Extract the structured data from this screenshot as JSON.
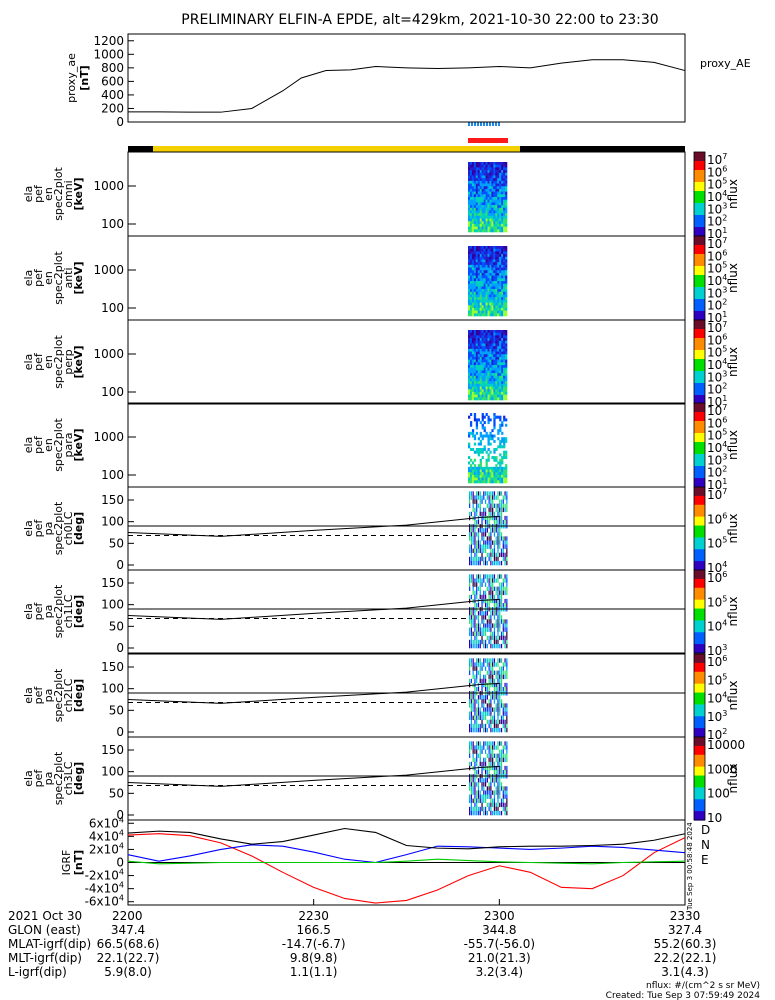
{
  "title": "PRELIMINARY ELFIN-A EPDE, alt=429km, 2021-10-30 22:00 to 23:30",
  "chart_data": [
    {
      "type": "line",
      "panel": "proxy_ae",
      "ylabel": "proxy_ae",
      "yunit": "[nT]",
      "legend": "proxy_AE",
      "yticks": [
        "0",
        "200",
        "400",
        "600",
        "800",
        "1000",
        "1200"
      ],
      "ylim": [
        0,
        1300
      ],
      "x_minutes": [
        0,
        5,
        10,
        15,
        20,
        25,
        28,
        32,
        36,
        40,
        45,
        50,
        55,
        60,
        65,
        70,
        75,
        80,
        85,
        90
      ],
      "values": [
        150,
        150,
        145,
        145,
        200,
        460,
        650,
        760,
        770,
        820,
        800,
        790,
        800,
        820,
        800,
        870,
        920,
        920,
        880,
        760
      ]
    },
    {
      "type": "heatmap",
      "panel": "spec_omni",
      "ylabel_lines": [
        "ela",
        "pef",
        "en",
        "spec2plot",
        "omni",
        "[keV]"
      ],
      "yticks": [
        "100",
        "1000"
      ],
      "colorbar_label": "nflux",
      "colorbar_ticks": [
        "10^7",
        "10^6",
        "10^5",
        "10^4",
        "10^3",
        "10^2",
        "10^1"
      ]
    },
    {
      "type": "heatmap",
      "panel": "spec_anti",
      "ylabel_lines": [
        "ela",
        "pef",
        "en",
        "spec2plot",
        "anti",
        "[keV]"
      ],
      "yticks": [
        "100",
        "1000"
      ],
      "colorbar_label": "nflux",
      "colorbar_ticks": [
        "10^7",
        "10^6",
        "10^5",
        "10^4",
        "10^3",
        "10^2",
        "10^1"
      ]
    },
    {
      "type": "heatmap",
      "panel": "spec_perp",
      "ylabel_lines": [
        "ela",
        "pef",
        "en",
        "spec2plot",
        "perp",
        "[keV]"
      ],
      "yticks": [
        "100",
        "1000"
      ],
      "colorbar_label": "nflux",
      "colorbar_ticks": [
        "10^7",
        "10^6",
        "10^5",
        "10^4",
        "10^3",
        "10^2",
        "10^1"
      ]
    },
    {
      "type": "heatmap",
      "panel": "spec_para",
      "ylabel_lines": [
        "ela",
        "pef",
        "en",
        "spec2plot",
        "para",
        "[keV]"
      ],
      "yticks": [
        "100",
        "1000"
      ],
      "colorbar_label": "nflux",
      "colorbar_ticks": [
        "10^7",
        "10^6",
        "10^5",
        "10^4",
        "10^3",
        "10^2",
        "10^1"
      ]
    },
    {
      "type": "heatmap",
      "panel": "pa_ch0",
      "ylabel_lines": [
        "ela",
        "pef",
        "pa",
        "spec2plot",
        "ch0LC",
        "[deg]"
      ],
      "yticks": [
        "0",
        "50",
        "100",
        "150"
      ],
      "ylim": [
        0,
        180
      ],
      "colorbar_label": "nflux",
      "colorbar_ticks": [
        "10^7",
        "10^6",
        "10^5",
        "10^4"
      ]
    },
    {
      "type": "heatmap",
      "panel": "pa_ch1",
      "ylabel_lines": [
        "ela",
        "pef",
        "pa",
        "spec2plot",
        "ch1LC",
        "[deg]"
      ],
      "yticks": [
        "0",
        "50",
        "100",
        "150"
      ],
      "ylim": [
        0,
        180
      ],
      "colorbar_label": "nflux",
      "colorbar_ticks": [
        "10^6",
        "10^5",
        "10^4",
        "10^3"
      ]
    },
    {
      "type": "heatmap",
      "panel": "pa_ch2",
      "ylabel_lines": [
        "ela",
        "pef",
        "pa",
        "spec2plot",
        "ch2LC",
        "[deg]"
      ],
      "yticks": [
        "0",
        "50",
        "100",
        "150"
      ],
      "ylim": [
        0,
        180
      ],
      "colorbar_label": "nflux",
      "colorbar_ticks": [
        "10^6",
        "10^5",
        "10^4",
        "10^3",
        "10^2"
      ]
    },
    {
      "type": "heatmap",
      "panel": "pa_ch3",
      "ylabel_lines": [
        "ela",
        "pef",
        "pa",
        "spec2plot",
        "ch3LC",
        "[deg]"
      ],
      "yticks": [
        "0",
        "50",
        "100",
        "150"
      ],
      "ylim": [
        0,
        180
      ],
      "colorbar_label": "nflux",
      "colorbar_ticks": [
        "10000",
        "1000",
        "100",
        "10"
      ]
    },
    {
      "type": "line",
      "panel": "igrf",
      "ylabel_lines": [
        "IGRF",
        "[nT]"
      ],
      "yticks": [
        "-6x10^4",
        "-4x10^4",
        "-2x10^4",
        "0",
        "2x10^4",
        "4x10^4",
        "6x10^4"
      ],
      "ylim": [
        -65000,
        65000
      ],
      "x_minutes": [
        0,
        5,
        10,
        15,
        20,
        25,
        30,
        35,
        40,
        45,
        50,
        55,
        60,
        65,
        70,
        75,
        80,
        85,
        90
      ],
      "series": [
        {
          "name": "D",
          "color": "#ff0000",
          "values": [
            42000,
            44000,
            41000,
            30000,
            10000,
            -15000,
            -38000,
            -55000,
            -62000,
            -58000,
            -42000,
            -20000,
            -5000,
            -15000,
            -38000,
            -40000,
            -20000,
            15000,
            38000
          ]
        },
        {
          "name": "N",
          "color": "#0000ff",
          "values": [
            12000,
            2000,
            10000,
            20000,
            27000,
            25000,
            16000,
            5000,
            0,
            12000,
            25000,
            24000,
            22000,
            20000,
            22000,
            25000,
            23000,
            19000,
            15000
          ]
        },
        {
          "name": "E",
          "color": "#00cc00",
          "values": [
            2000,
            -2000,
            -1000,
            0,
            0,
            0,
            0,
            0,
            0,
            2000,
            5000,
            3000,
            1000,
            0,
            -1000,
            -2000,
            0,
            1000,
            2000
          ]
        },
        {
          "name": "",
          "color": "#000000",
          "values": [
            45000,
            48000,
            46000,
            36000,
            28000,
            32000,
            42000,
            52000,
            46000,
            26000,
            22000,
            21000,
            24000,
            25000,
            25000,
            26000,
            28000,
            34000,
            44000
          ]
        }
      ]
    }
  ],
  "x_axis": {
    "row_labels": [
      "2021 Oct 30",
      "GLON (east)",
      "MLAT-igrf(dip)",
      "MLT-igrf(dip)",
      "L-igrf(dip)"
    ],
    "columns": [
      {
        "time": "2200",
        "glon": "347.4",
        "mlat": "66.5(68.6)",
        "mlt": "22.1(22.7)",
        "l": "5.9(8.0)"
      },
      {
        "time": "2230",
        "glon": "166.5",
        "mlat": "-14.7(-6.7)",
        "mlt": "9.8(9.8)",
        "l": "1.1(1.1)"
      },
      {
        "time": "2300",
        "glon": "344.8",
        "mlat": "-55.7(-56.0)",
        "mlt": "21.0(21.3)",
        "l": "3.2(3.4)"
      },
      {
        "time": "2330",
        "glon": "327.4",
        "mlat": "55.2(60.3)",
        "mlt": "22.2(22.1)",
        "l": "3.1(4.3)"
      }
    ]
  },
  "footer": {
    "units": "nflux: #/(cm^2 s sr MeV)",
    "created": "Created: Tue Sep  3 07:59:49 2024",
    "side_stamp": "Tue Sep  3 00:58:48 2024"
  },
  "colors": {
    "bar_yellow": "#f5d000",
    "bar_black": "#000000",
    "bar_red": "#ff1a1a",
    "bar_blue": "#1e88e5",
    "spectrogram": "#3a3ad0"
  }
}
